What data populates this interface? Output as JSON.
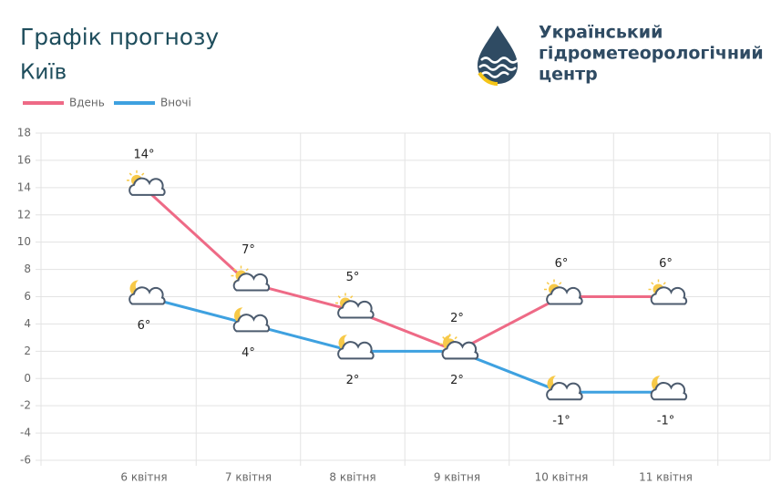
{
  "header": {
    "title": "Графік прогнозу",
    "city": "Київ"
  },
  "logo": {
    "lines": [
      "Український",
      "гідрометеорологічний",
      "центр"
    ]
  },
  "chart_data": {
    "type": "line",
    "categories": [
      "6 квітня",
      "7 квітня",
      "8 квітня",
      "9 квітня",
      "10 квітня",
      "11 квітня"
    ],
    "series": [
      {
        "name": "Вдень",
        "color": "#ee6a86",
        "values": [
          14,
          7,
          5,
          2,
          6,
          6
        ],
        "value_labels": [
          "14°",
          "7°",
          "5°",
          "2°",
          "6°",
          "6°"
        ]
      },
      {
        "name": "Вночі",
        "color": "#3ea1e0",
        "values": [
          6,
          4,
          2,
          2,
          -1,
          -1
        ],
        "value_labels": [
          "6°",
          "4°",
          "2°",
          "2°",
          "-1°",
          "-1°"
        ]
      }
    ],
    "ylim": [
      -6,
      18
    ],
    "yticks": [
      -6,
      -4,
      -2,
      0,
      2,
      4,
      6,
      8,
      10,
      12,
      14,
      16,
      18
    ],
    "grid": true
  }
}
